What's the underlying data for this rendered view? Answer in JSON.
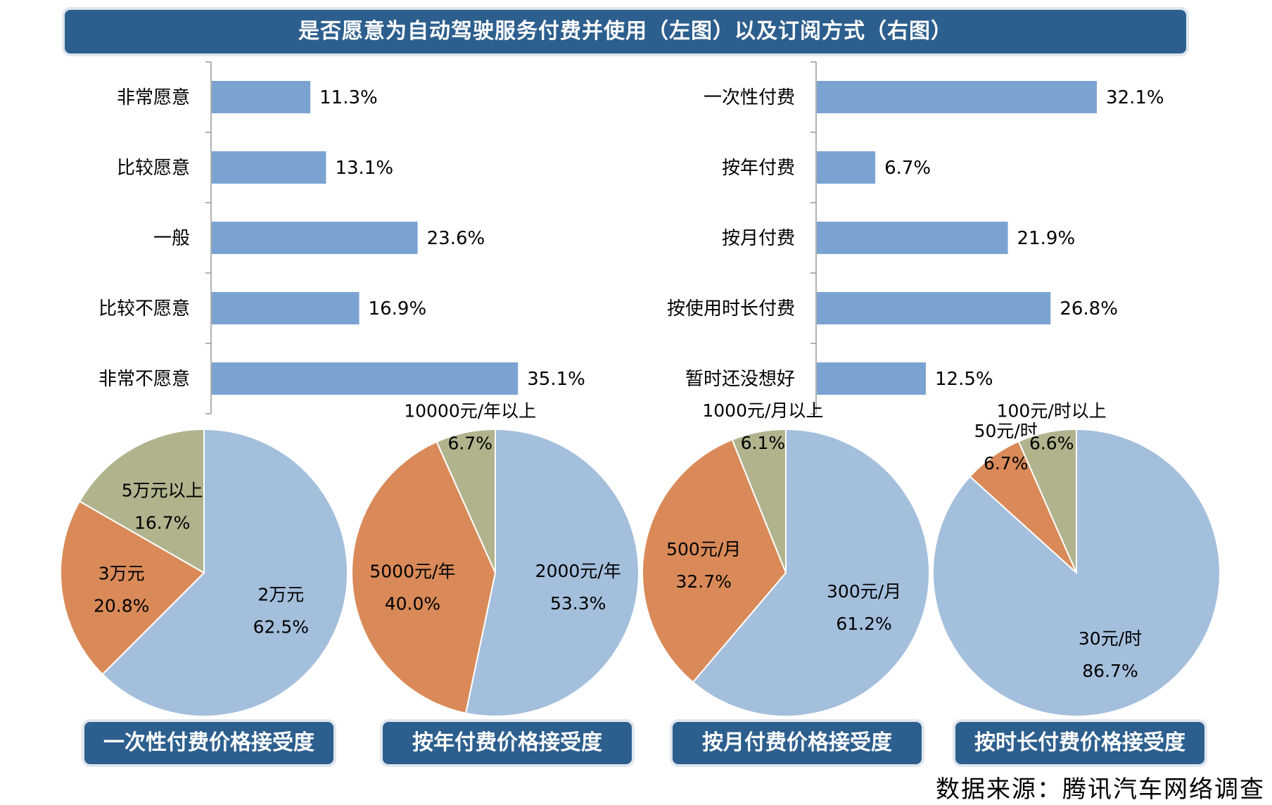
{
  "title": "是否愿意为自动驾驶服务付费并使用（左图）以及订阅方式（右图）",
  "source": "数据来源：腾讯汽车网络调查",
  "colors": {
    "bar": "#7ba3d2",
    "pie_blue": "#a4bfdc",
    "pie_orange": "#d98a58",
    "pie_olive": "#b1b38d",
    "banner": "#2d5f8e"
  },
  "chart_data": [
    {
      "type": "bar",
      "orientation": "horizontal",
      "title": "",
      "categories": [
        "非常愿意",
        "比较愿意",
        "一般",
        "比较不愿意",
        "非常不愿意"
      ],
      "values": [
        11.3,
        13.1,
        23.6,
        16.9,
        35.1
      ],
      "value_labels": [
        "11.3%",
        "13.1%",
        "23.6%",
        "16.9%",
        "35.1%"
      ],
      "xlim": [
        0,
        55
      ]
    },
    {
      "type": "bar",
      "orientation": "horizontal",
      "title": "",
      "categories": [
        "一次性付费",
        "按年付费",
        "按月付费",
        "按使用时长付费",
        "暂时还没想好"
      ],
      "values": [
        32.1,
        6.7,
        21.9,
        26.8,
        12.5
      ],
      "value_labels": [
        "32.1%",
        "6.7%",
        "21.9%",
        "26.8%",
        "12.5%"
      ],
      "xlim": [
        0,
        55
      ]
    },
    {
      "type": "pie",
      "title": "一次性付费价格接受度",
      "slices": [
        {
          "label": "2万元",
          "value": 62.5,
          "value_label": "62.5%",
          "color": "#a4bfdc"
        },
        {
          "label": "3万元",
          "value": 20.8,
          "value_label": "20.8%",
          "color": "#d98a58"
        },
        {
          "label": "5万元以上",
          "value": 16.7,
          "value_label": "16.7%",
          "color": "#b1b38d"
        }
      ]
    },
    {
      "type": "pie",
      "title": "按年付费价格接受度",
      "slices": [
        {
          "label": "2000元/年",
          "value": 53.3,
          "value_label": "53.3%",
          "color": "#a4bfdc"
        },
        {
          "label": "5000元/年",
          "value": 40.0,
          "value_label": "40.0%",
          "color": "#d98a58"
        },
        {
          "label": "10000元/年以上",
          "value": 6.7,
          "value_label": "6.7%",
          "color": "#b1b38d"
        }
      ]
    },
    {
      "type": "pie",
      "title": "按月付费价格接受度",
      "slices": [
        {
          "label": "300元/月",
          "value": 61.2,
          "value_label": "61.2%",
          "color": "#a4bfdc"
        },
        {
          "label": "500元/月",
          "value": 32.7,
          "value_label": "32.7%",
          "color": "#d98a58"
        },
        {
          "label": "1000元/月以上",
          "value": 6.1,
          "value_label": "6.1%",
          "color": "#b1b38d"
        }
      ]
    },
    {
      "type": "pie",
      "title": "按时长付费价格接受度",
      "slices": [
        {
          "label": "30元/时",
          "value": 86.7,
          "value_label": "86.7%",
          "color": "#a4bfdc"
        },
        {
          "label": "50元/时",
          "value": 6.7,
          "value_label": "6.7%",
          "color": "#d98a58"
        },
        {
          "label": "100元/时以上",
          "value": 6.6,
          "value_label": "6.6%",
          "color": "#b1b38d"
        }
      ]
    }
  ]
}
